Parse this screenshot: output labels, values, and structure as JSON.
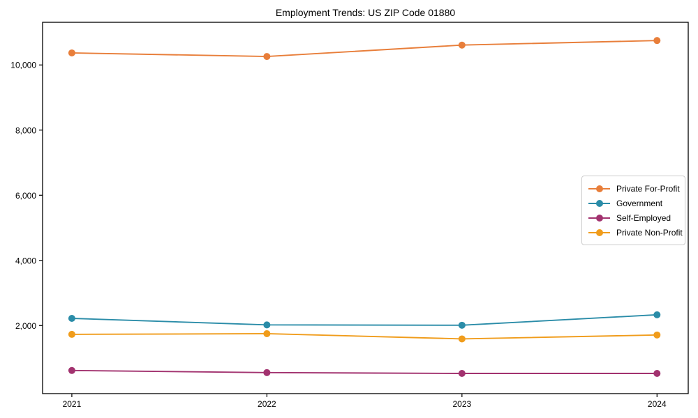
{
  "chart_data": {
    "type": "line",
    "title": "Employment Trends: US ZIP Code 01880",
    "xlabel": "",
    "ylabel": "",
    "x": [
      2021,
      2022,
      2023,
      2024
    ],
    "x_tick_labels": [
      "2021",
      "2022",
      "2023",
      "2024"
    ],
    "y_ticks": [
      2000,
      4000,
      6000,
      8000,
      10000
    ],
    "y_tick_labels": [
      "2,000",
      "4,000",
      "6,000",
      "8,000",
      "10,000"
    ],
    "xlim": [
      2020.85,
      2024.16
    ],
    "ylim": [
      -90,
      11310
    ],
    "grid": false,
    "marker": "o",
    "legend_position": "center right",
    "series": [
      {
        "name": "Private For-Profit",
        "color": "#E87E3A",
        "values": [
          10370,
          10260,
          10610,
          10750
        ]
      },
      {
        "name": "Government",
        "color": "#2A8CA8",
        "values": [
          2220,
          2020,
          2010,
          2330
        ]
      },
      {
        "name": "Self-Employed",
        "color": "#A2326F",
        "values": [
          620,
          555,
          530,
          530
        ]
      },
      {
        "name": "Private Non-Profit",
        "color": "#F09C1B",
        "values": [
          1730,
          1750,
          1590,
          1710
        ]
      }
    ]
  },
  "frame_color": "#000000",
  "tick_color": "#000000"
}
